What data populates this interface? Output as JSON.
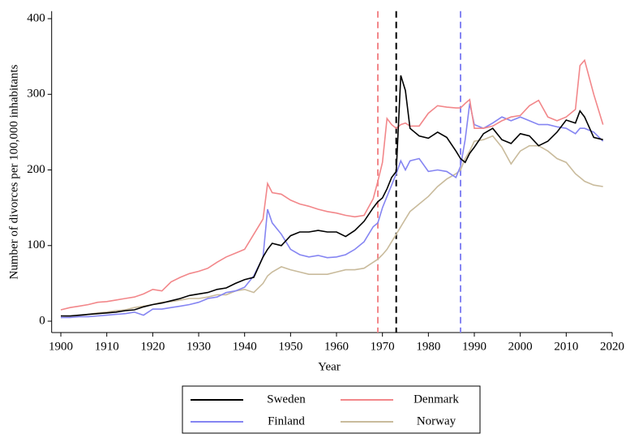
{
  "chart_data": {
    "type": "line",
    "xlabel": "Year",
    "ylabel": "Number of divorces per 100,000 inhabitants",
    "x": [
      1900,
      1902,
      1904,
      1906,
      1908,
      1910,
      1912,
      1914,
      1916,
      1918,
      1920,
      1922,
      1924,
      1926,
      1928,
      1930,
      1932,
      1934,
      1936,
      1938,
      1940,
      1942,
      1944,
      1945,
      1946,
      1948,
      1950,
      1952,
      1954,
      1956,
      1958,
      1960,
      1962,
      1964,
      1966,
      1968,
      1969,
      1970,
      1971,
      1972,
      1973,
      1974,
      1975,
      1976,
      1978,
      1980,
      1982,
      1984,
      1986,
      1987,
      1988,
      1989,
      1990,
      1992,
      1994,
      1996,
      1998,
      2000,
      2002,
      2004,
      2006,
      2008,
      2010,
      2012,
      2013,
      2014,
      2016,
      2018
    ],
    "series": [
      {
        "name": "Sweden",
        "color": "#000000",
        "values": [
          7,
          7,
          8,
          9,
          10,
          11,
          12,
          14,
          15,
          19,
          22,
          24,
          27,
          30,
          34,
          36,
          38,
          42,
          44,
          50,
          55,
          58,
          85,
          95,
          103,
          100,
          113,
          118,
          118,
          120,
          118,
          118,
          112,
          120,
          132,
          150,
          158,
          163,
          175,
          190,
          198,
          325,
          305,
          255,
          245,
          242,
          250,
          243,
          225,
          215,
          210,
          222,
          230,
          248,
          255,
          240,
          235,
          248,
          245,
          232,
          238,
          250,
          266,
          262,
          278,
          270,
          243,
          240
        ]
      },
      {
        "name": "Denmark",
        "color": "#f2878a",
        "values": [
          15,
          18,
          20,
          22,
          25,
          26,
          28,
          30,
          32,
          36,
          42,
          40,
          52,
          58,
          63,
          66,
          70,
          78,
          85,
          90,
          95,
          115,
          135,
          182,
          170,
          168,
          160,
          155,
          152,
          148,
          145,
          143,
          140,
          138,
          140,
          162,
          185,
          210,
          268,
          260,
          255,
          260,
          262,
          258,
          258,
          275,
          285,
          283,
          282,
          282,
          288,
          293,
          255,
          255,
          258,
          265,
          270,
          272,
          285,
          292,
          270,
          265,
          270,
          280,
          338,
          345,
          300,
          260
        ]
      },
      {
        "name": "Finland",
        "color": "#8585f2",
        "values": [
          5,
          5,
          6,
          6,
          7,
          8,
          9,
          10,
          12,
          8,
          16,
          16,
          18,
          20,
          22,
          25,
          30,
          32,
          38,
          40,
          45,
          60,
          85,
          148,
          130,
          115,
          95,
          88,
          85,
          87,
          84,
          85,
          88,
          95,
          105,
          125,
          130,
          150,
          165,
          180,
          195,
          212,
          200,
          212,
          215,
          198,
          200,
          198,
          190,
          205,
          240,
          288,
          260,
          255,
          262,
          270,
          265,
          270,
          265,
          260,
          260,
          257,
          255,
          248,
          255,
          255,
          250,
          238
        ]
      },
      {
        "name": "Norway",
        "color": "#c9bb9c",
        "values": [
          5,
          6,
          7,
          9,
          11,
          12,
          14,
          15,
          18,
          20,
          22,
          25,
          26,
          28,
          30,
          30,
          32,
          35,
          35,
          40,
          42,
          38,
          50,
          60,
          65,
          72,
          68,
          65,
          62,
          62,
          62,
          65,
          68,
          68,
          70,
          78,
          82,
          88,
          95,
          105,
          115,
          125,
          135,
          145,
          155,
          165,
          178,
          188,
          195,
          200,
          215,
          225,
          238,
          240,
          245,
          230,
          208,
          225,
          232,
          232,
          225,
          215,
          210,
          195,
          190,
          185,
          180,
          178
        ]
      }
    ],
    "reference_lines": [
      {
        "x": 1969,
        "color": "#f2878a"
      },
      {
        "x": 1973,
        "color": "#000000"
      },
      {
        "x": 1987,
        "color": "#8585f2"
      }
    ],
    "xlim": [
      1898,
      2020
    ],
    "xticks": [
      1900,
      1910,
      1920,
      1930,
      1940,
      1950,
      1960,
      1970,
      1980,
      1990,
      2000,
      2010,
      2020
    ],
    "ylim": [
      -15,
      410
    ],
    "yticks": [
      0,
      100,
      200,
      300,
      400
    ]
  }
}
